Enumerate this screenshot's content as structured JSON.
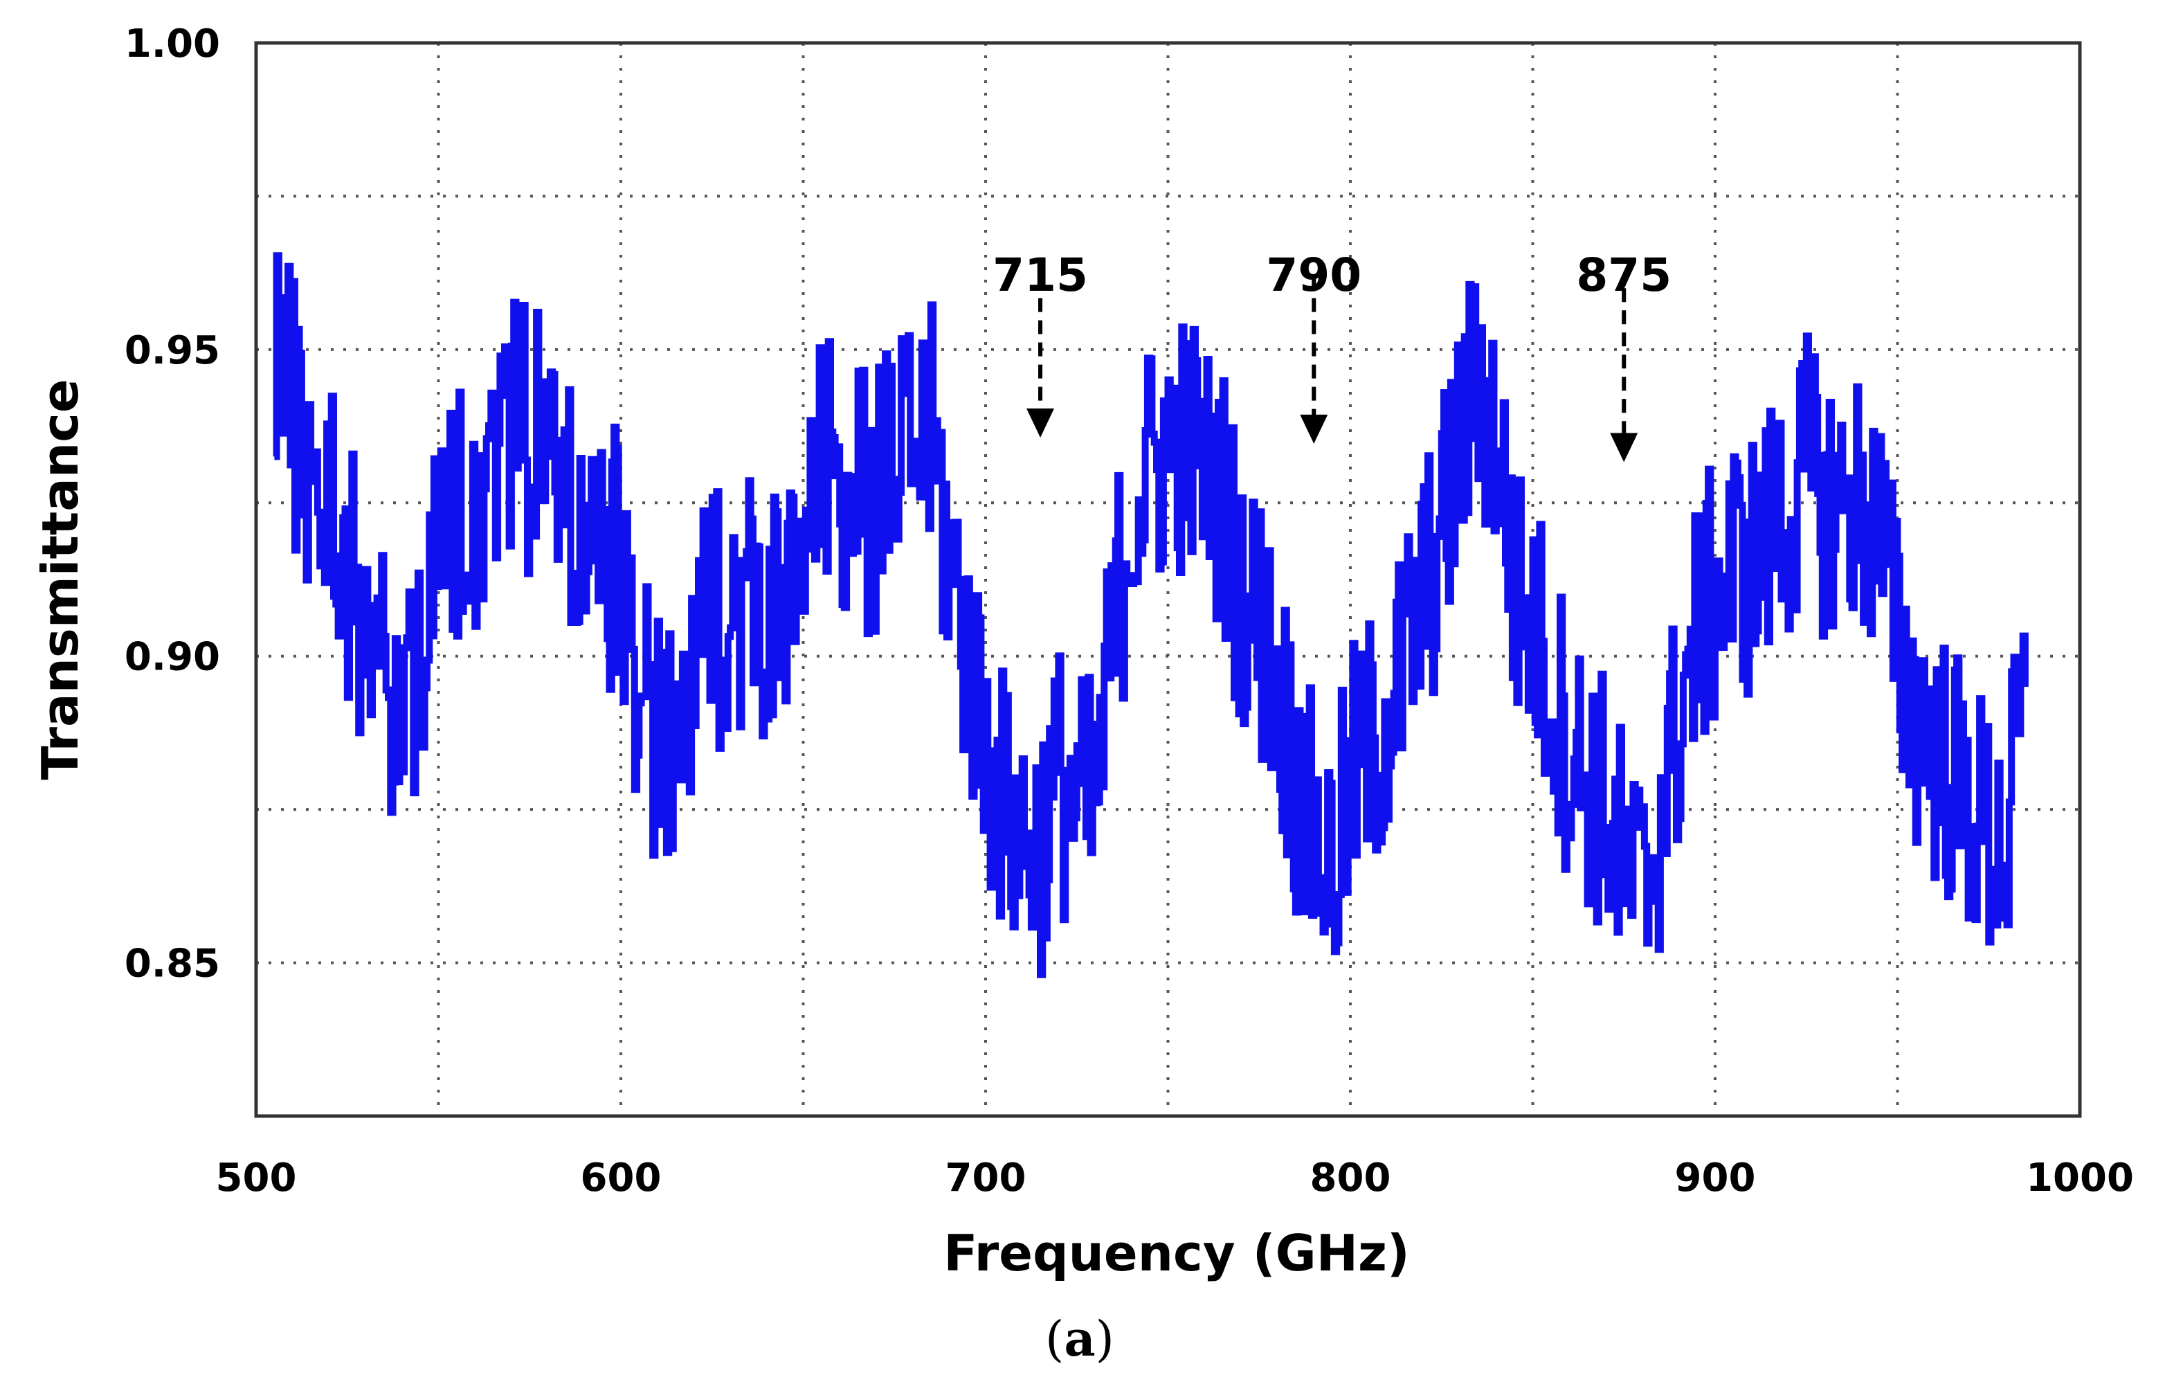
{
  "chart_data": {
    "type": "line",
    "title": "",
    "xlabel": "Frequency (GHz)",
    "ylabel": "Transmittance",
    "xlim": [
      500,
      1000
    ],
    "ylim": [
      0.825,
      1.0
    ],
    "x_ticks": [
      500,
      600,
      700,
      800,
      900,
      1000
    ],
    "x_tick_labels": [
      "500",
      "600",
      "700",
      "800",
      "900",
      "1000"
    ],
    "y_ticks": [
      0.85,
      0.9,
      0.95,
      1.0
    ],
    "y_tick_labels": [
      "0.85",
      "0.90",
      "0.95",
      "1.00"
    ],
    "x_grid": [
      550,
      600,
      650,
      700,
      750,
      800,
      850,
      900,
      950
    ],
    "y_grid": [
      0.85,
      0.875,
      0.9,
      0.925,
      0.95,
      0.975
    ],
    "grid": true,
    "line_color": "#1010ee",
    "series": [
      {
        "x": [
          505,
          510,
          515,
          520,
          525,
          530,
          535,
          540,
          545,
          550,
          555,
          560,
          565,
          570,
          575,
          580,
          585,
          590,
          595,
          600,
          605,
          610,
          615,
          620,
          625,
          630,
          635,
          640,
          645,
          650,
          655,
          660,
          665,
          670,
          675,
          680,
          685,
          690,
          695,
          700,
          705,
          710,
          715,
          720,
          725,
          730,
          735,
          740,
          745,
          750,
          755,
          760,
          765,
          770,
          775,
          780,
          785,
          790,
          795,
          800,
          805,
          810,
          815,
          820,
          825,
          830,
          835,
          840,
          845,
          850,
          855,
          860,
          865,
          870,
          875,
          880,
          885,
          890,
          895,
          900,
          905,
          910,
          915,
          920,
          925,
          930,
          935,
          940,
          945,
          950,
          955,
          960,
          965,
          970,
          975,
          980,
          985
        ],
        "y": [
          0.955,
          0.94,
          0.93,
          0.925,
          0.915,
          0.905,
          0.895,
          0.89,
          0.905,
          0.915,
          0.925,
          0.925,
          0.935,
          0.94,
          0.935,
          0.935,
          0.925,
          0.92,
          0.915,
          0.915,
          0.895,
          0.885,
          0.88,
          0.9,
          0.905,
          0.91,
          0.91,
          0.905,
          0.905,
          0.915,
          0.93,
          0.93,
          0.925,
          0.925,
          0.93,
          0.935,
          0.935,
          0.915,
          0.9,
          0.885,
          0.875,
          0.87,
          0.87,
          0.88,
          0.875,
          0.875,
          0.905,
          0.925,
          0.93,
          0.935,
          0.935,
          0.93,
          0.925,
          0.91,
          0.905,
          0.895,
          0.88,
          0.87,
          0.865,
          0.88,
          0.885,
          0.89,
          0.9,
          0.91,
          0.92,
          0.935,
          0.945,
          0.935,
          0.91,
          0.905,
          0.895,
          0.885,
          0.88,
          0.875,
          0.865,
          0.86,
          0.875,
          0.89,
          0.905,
          0.91,
          0.915,
          0.915,
          0.92,
          0.925,
          0.93,
          0.925,
          0.925,
          0.925,
          0.92,
          0.9,
          0.89,
          0.885,
          0.88,
          0.875,
          0.87,
          0.87,
          0.895
        ]
      }
    ],
    "annotations": [
      {
        "text": "715",
        "x": 715,
        "y_start": 0.962,
        "y_end": 0.937
      },
      {
        "text": "790",
        "x": 790,
        "y_start": 0.962,
        "y_end": 0.936
      },
      {
        "text": "875",
        "x": 875,
        "y_start": 0.96,
        "y_end": 0.933
      }
    ]
  },
  "caption": {
    "open": "(",
    "letter": "a",
    "close": ")"
  }
}
